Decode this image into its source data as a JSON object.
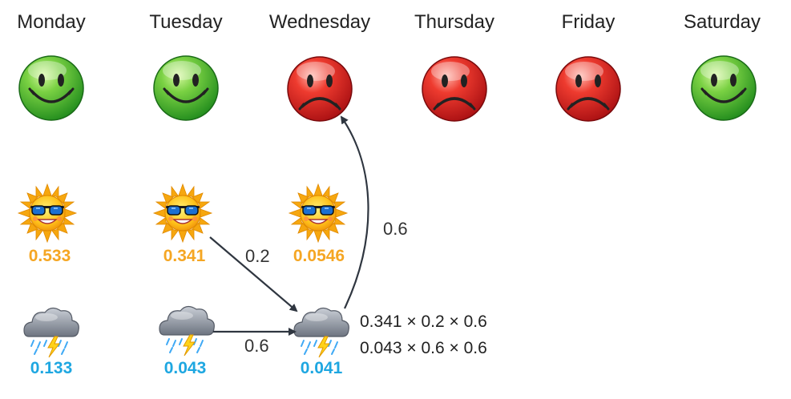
{
  "days": [
    "Monday",
    "Tuesday",
    "Wednesday",
    "Thursday",
    "Friday",
    "Saturday"
  ],
  "moods": [
    "happy",
    "happy",
    "sad",
    "sad",
    "sad",
    "happy"
  ],
  "sunny_probs": [
    "0.533",
    "0.341",
    "0.0546"
  ],
  "rainy_probs": [
    "0.133",
    "0.043",
    "0.041"
  ],
  "edges": {
    "tue_sunny_to_wed_rainy": "0.2",
    "tue_rainy_to_wed_rainy": "0.6",
    "wed_rainy_to_wed_mood": "0.6"
  },
  "calculation": {
    "line1": "0.341 × 0.2 × 0.6",
    "line2": "0.043 × 0.6 × 0.6"
  },
  "icons": {
    "happy": "happy-face-icon",
    "sad": "sad-face-icon",
    "sunny": "sun-with-sunglasses-icon",
    "rainy": "storm-cloud-icon"
  },
  "colors": {
    "sunny_prob": "#f5a623",
    "rainy_prob": "#1ea7e1",
    "happy_face": "#3fae29",
    "sad_face": "#d42424",
    "arrow": "#2f3640"
  }
}
